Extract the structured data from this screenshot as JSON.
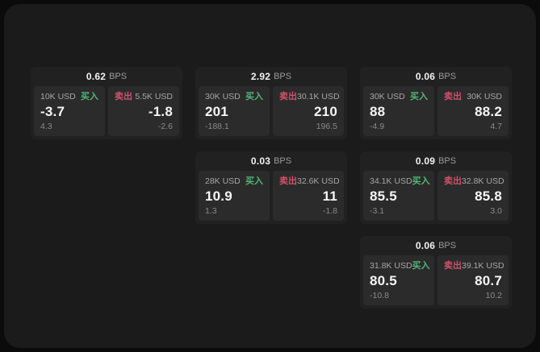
{
  "labels": {
    "buy": "买入",
    "sell": "卖出",
    "bps": "BPS"
  },
  "colors": {
    "outer_bg": "#0b0b0b",
    "panel_bg": "#1b1b1b",
    "card_bg": "#212121",
    "tile_bg": "#2b2b2b",
    "buy_green": "#53b578",
    "sell_red": "#cf5268"
  },
  "cards": [
    {
      "bps": "0.62",
      "buy": {
        "size": "10K USD",
        "price": "-3.7",
        "change": "4.3"
      },
      "sell": {
        "size": "5.5K USD",
        "price": "-1.8",
        "change": "-2.6"
      }
    },
    {
      "bps": "2.92",
      "buy": {
        "size": "30K USD",
        "price": "201",
        "change": "-188.1"
      },
      "sell": {
        "size": "30.1K USD",
        "price": "210",
        "change": "196.5"
      }
    },
    {
      "bps": "0.06",
      "buy": {
        "size": "30K USD",
        "price": "88",
        "change": "-4.9"
      },
      "sell": {
        "size": "30K USD",
        "price": "88.2",
        "change": "4.7"
      }
    },
    {
      "bps": "0.03",
      "buy": {
        "size": "28K USD",
        "price": "10.9",
        "change": "1.3"
      },
      "sell": {
        "size": "32.6K USD",
        "price": "11",
        "change": "-1.8"
      }
    },
    {
      "bps": "0.09",
      "buy": {
        "size": "34.1K USD",
        "price": "85.5",
        "change": "-3.1"
      },
      "sell": {
        "size": "32.8K USD",
        "price": "85.8",
        "change": "3.0"
      }
    },
    {
      "bps": "0.06",
      "buy": {
        "size": "31.8K USD",
        "price": "80.5",
        "change": "-10.8"
      },
      "sell": {
        "size": "39.1K USD",
        "price": "80.7",
        "change": "10.2"
      }
    }
  ]
}
